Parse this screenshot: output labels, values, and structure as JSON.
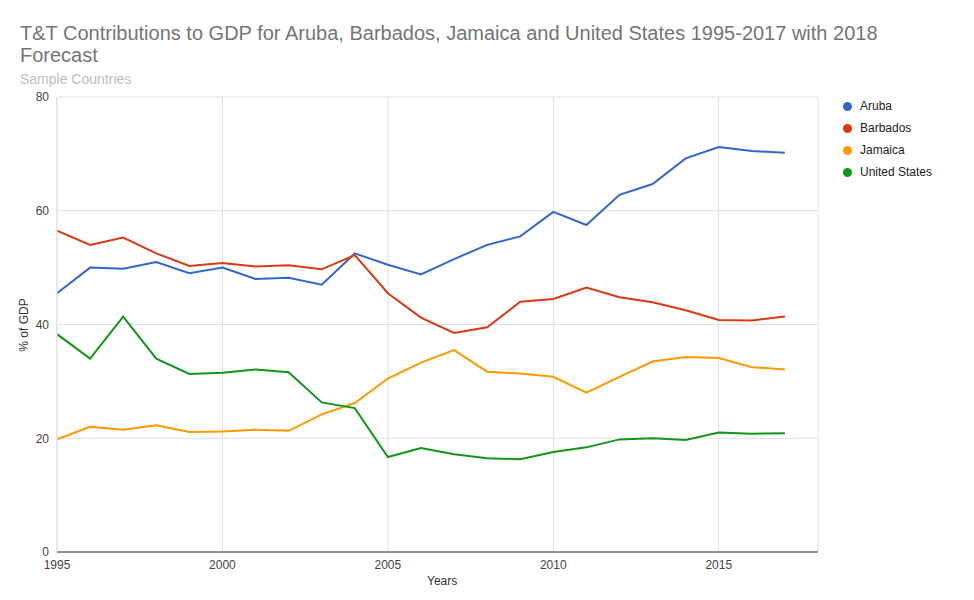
{
  "chart_data": {
    "type": "line",
    "title": "T&T Contributions to GDP for Aruba, Barbados, Jamaica and United States 1995-2017 with 2018 Forecast",
    "subtitle": "Sample Countries",
    "x_label": "Years",
    "y_label": "% of GDP",
    "x": [
      1995,
      1996,
      1997,
      1998,
      1999,
      2000,
      2001,
      2002,
      2003,
      2004,
      2005,
      2006,
      2007,
      2008,
      2009,
      2010,
      2011,
      2012,
      2013,
      2014,
      2015,
      2016,
      2017
    ],
    "series": [
      {
        "name": "Aruba",
        "color": "#3366cc",
        "values": [
          45.5,
          50,
          49.8,
          51,
          49,
          50,
          48,
          48.2,
          47,
          52.5,
          50.5,
          48.8,
          51.5,
          54,
          55.5,
          59.8,
          57.5,
          62.8,
          64.7,
          69.2,
          71.2,
          70.5,
          70.2
        ]
      },
      {
        "name": "Barbados",
        "color": "#dc3912",
        "values": [
          56.5,
          54,
          55.3,
          52.5,
          50.3,
          50.8,
          50.2,
          50.4,
          49.7,
          52.2,
          45.5,
          41.2,
          38.5,
          39.5,
          44,
          44.5,
          46.5,
          44.8,
          43.9,
          42.5,
          40.8,
          40.7,
          41.4
        ]
      },
      {
        "name": "Jamaica",
        "color": "#ff9900",
        "values": [
          19.8,
          22,
          21.5,
          22.3,
          21.1,
          21.2,
          21.5,
          21.3,
          24.2,
          26.2,
          30.5,
          33.3,
          35.5,
          31.7,
          31.4,
          30.8,
          28,
          30.8,
          33.5,
          34.3,
          34.1,
          32.5,
          32.1
        ]
      },
      {
        "name": "United States",
        "color": "#109618",
        "values": [
          38.3,
          34,
          41.4,
          34,
          31.3,
          31.5,
          32.1,
          31.6,
          26.3,
          25.3,
          16.7,
          18.3,
          17.2,
          16.5,
          16.3,
          17.6,
          18.4,
          19.8,
          20,
          19.7,
          21,
          20.8,
          20.9
        ]
      }
    ],
    "xlim": [
      1995,
      2018
    ],
    "xticks": [
      1995,
      2000,
      2005,
      2010,
      2015
    ],
    "ylim": [
      0,
      80
    ],
    "yticks": [
      0,
      20,
      40,
      60,
      80
    ],
    "grid": true,
    "legend": "right"
  }
}
